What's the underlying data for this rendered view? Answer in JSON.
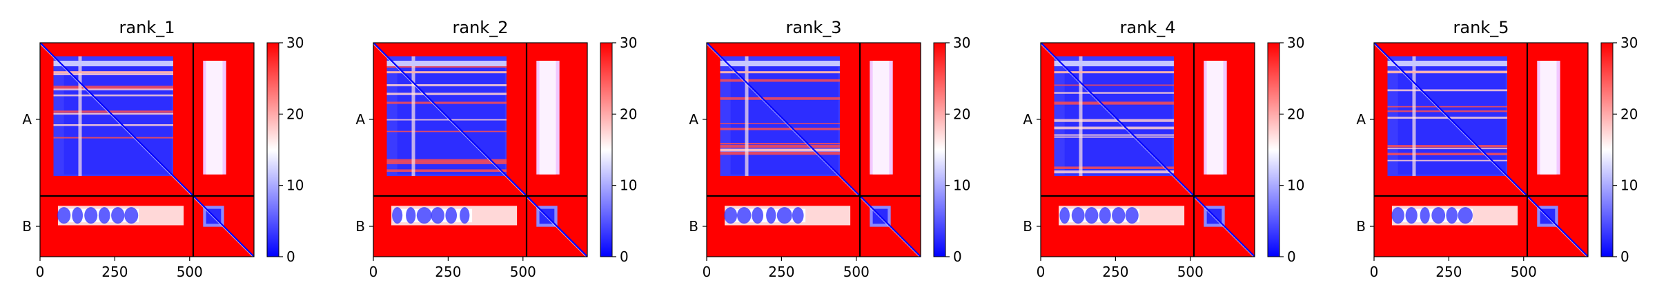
{
  "chart_data": {
    "type": "heatmap",
    "colormap": {
      "name": "bwr",
      "low": "#0000ff",
      "mid": "#ffffff",
      "high": "#ff0000"
    },
    "value_range": [
      0,
      30
    ],
    "colorbar_ticks": [
      "0",
      "10",
      "20",
      "30"
    ],
    "x_ticks": [
      0,
      250,
      500
    ],
    "x_range": [
      0,
      715
    ],
    "chain_boundary": 512,
    "chains": [
      {
        "label": "A",
        "start": 0,
        "end": 512
      },
      {
        "label": "B",
        "start": 512,
        "end": 715
      }
    ],
    "panels": [
      {
        "title": "rank_1"
      },
      {
        "title": "rank_2"
      },
      {
        "title": "rank_3"
      },
      {
        "title": "rank_4"
      },
      {
        "title": "rank_5"
      }
    ]
  }
}
